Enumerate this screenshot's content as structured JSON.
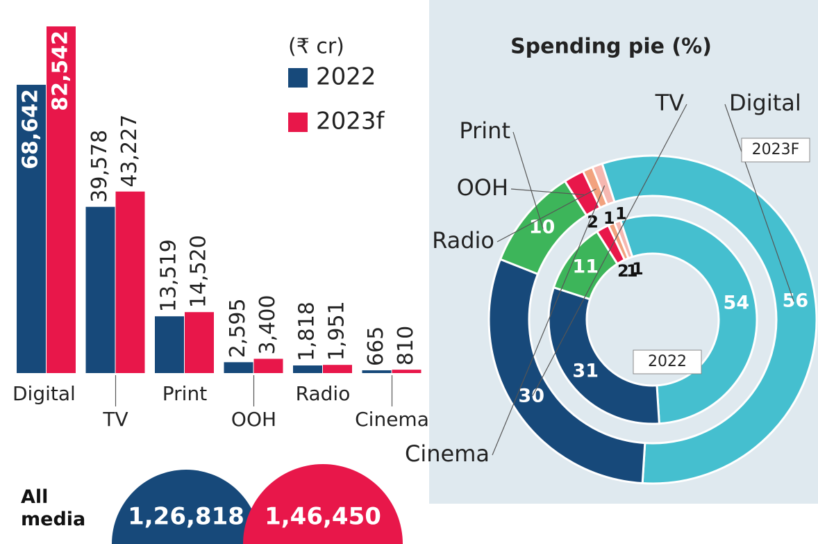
{
  "chart_data": [
    {
      "type": "bar",
      "unit": "(₹ cr)",
      "categories": [
        "Digital",
        "TV",
        "Print",
        "OOH",
        "Radio",
        "Cinema"
      ],
      "series": [
        {
          "name": "2022",
          "color": "#17497a",
          "values": [
            68642,
            39578,
            13519,
            2595,
            1818,
            665
          ],
          "value_labels": [
            "68,642",
            "39,578",
            "13,519",
            "2,595",
            "1,818",
            "665"
          ]
        },
        {
          "name": "2023f",
          "color": "#e8174a",
          "values": [
            82542,
            43227,
            14520,
            3400,
            1951,
            810
          ],
          "value_labels": [
            "82,542",
            "43,227",
            "14,520",
            "3,400",
            "1,951",
            "810"
          ]
        }
      ]
    },
    {
      "type": "pie",
      "title": "Spending pie (%)",
      "categories": [
        "Digital",
        "TV",
        "Print",
        "OOH",
        "Radio",
        "Cinema"
      ],
      "colors": [
        "#45bfcf",
        "#17497a",
        "#3db55a",
        "#e8174a",
        "#f2a27e",
        "#f6b7b0"
      ],
      "series": [
        {
          "name": "2022",
          "values": [
            54,
            31,
            11,
            2,
            1,
            1
          ]
        },
        {
          "name": "2023F",
          "values": [
            56,
            30,
            10,
            2,
            1,
            1
          ]
        }
      ]
    },
    {
      "type": "semicircle",
      "label": "All media",
      "values": [
        126818,
        146450
      ],
      "value_labels": [
        "1,26,818",
        "1,46,450"
      ],
      "colors": [
        "#17497a",
        "#e8174a"
      ]
    }
  ]
}
